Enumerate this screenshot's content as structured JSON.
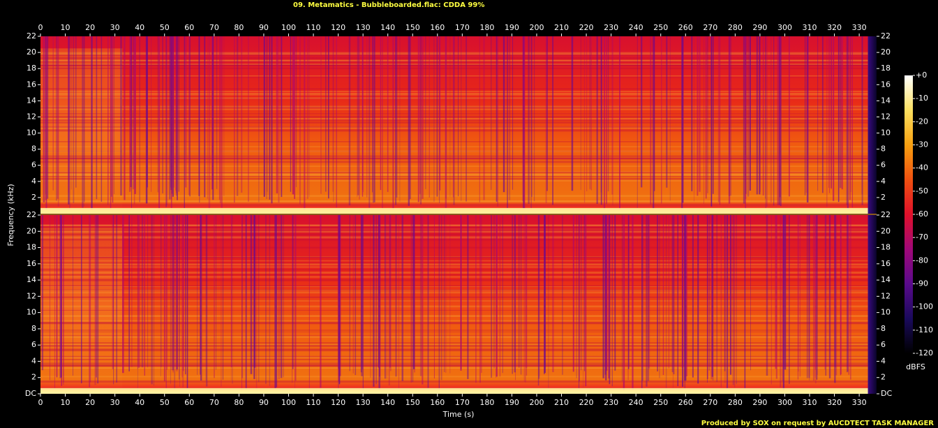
{
  "chart_data": {
    "type": "spectrogram",
    "title": "09. Metamatics - Bubbleboarded.flac: CDDA 99%",
    "x_label": "Time (s)",
    "y_label": "Frequency (kHz)",
    "xlim": [
      0,
      337
    ],
    "xticks": [
      0,
      10,
      20,
      30,
      40,
      50,
      60,
      70,
      80,
      90,
      100,
      110,
      120,
      130,
      140,
      150,
      160,
      170,
      180,
      190,
      200,
      210,
      220,
      230,
      240,
      250,
      260,
      270,
      280,
      290,
      300,
      310,
      320,
      330
    ],
    "panels": [
      {
        "ylim": [
          0,
          22
        ],
        "yticks": [
          2,
          4,
          6,
          8,
          10,
          12,
          14,
          16,
          18,
          20,
          22
        ]
      },
      {
        "ylim": [
          0,
          22
        ],
        "yticks": [
          {
            "value": 0,
            "label": "DC"
          },
          2,
          4,
          6,
          8,
          10,
          12,
          14,
          16,
          18,
          20,
          22
        ]
      }
    ],
    "colorbar": {
      "label": "dBFS",
      "lim": [
        -120,
        0
      ],
      "ticks": [
        {
          "value": 0,
          "label": "+0"
        },
        -10,
        -20,
        -30,
        -40,
        -50,
        -60,
        -70,
        -80,
        -90,
        -100,
        -110,
        -120
      ],
      "colors": [
        "#000000",
        "#1a0a5c",
        "#5a0a8c",
        "#a00878",
        "#e0102a",
        "#f05010",
        "#f8a010",
        "#fce060",
        "#ffffff"
      ]
    },
    "footer": "Produced by SOX on request by AUCDTECT TASK MANAGER"
  }
}
